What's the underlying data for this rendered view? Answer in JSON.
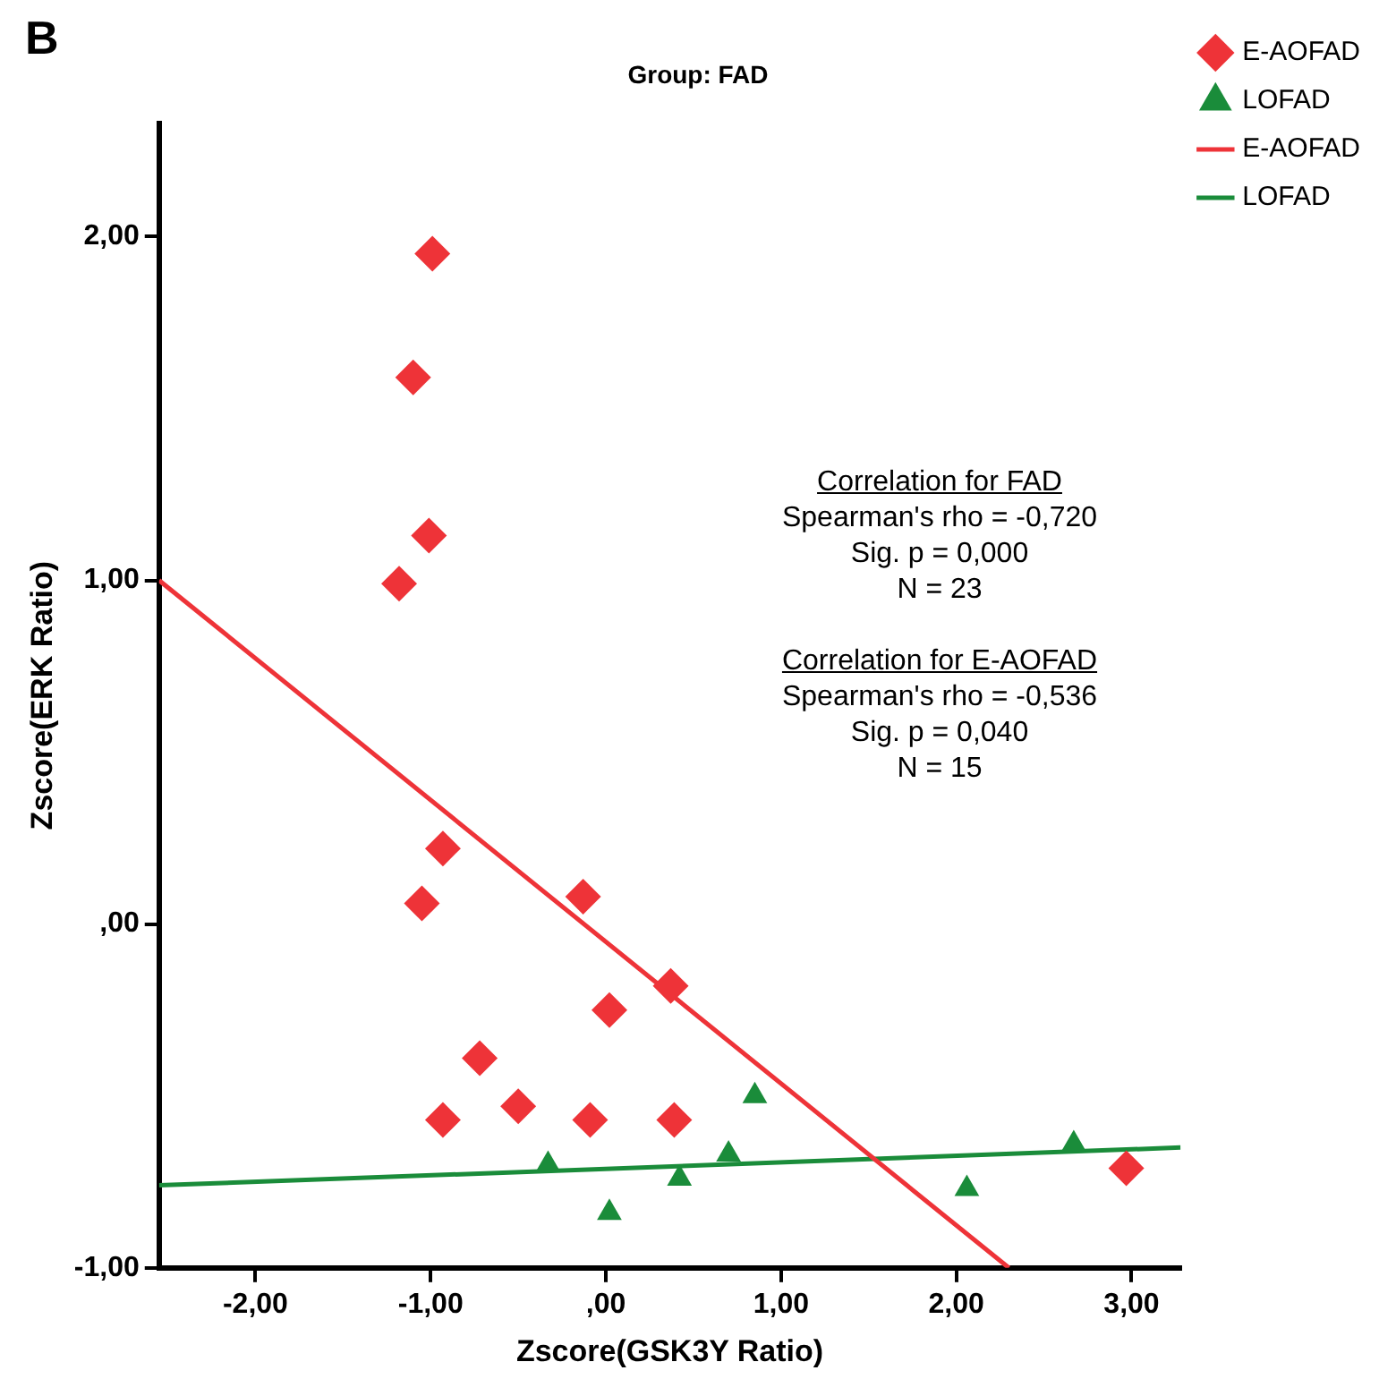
{
  "chart_data": {
    "type": "scatter",
    "title": "Group: FAD",
    "xlabel": "Zscore(GSK3Y Ratio)",
    "ylabel": "Zscore(ERK Ratio)",
    "xlim": [
      -2.55,
      3.28
    ],
    "ylim": [
      -1,
      2.33
    ],
    "xticks": [
      {
        "value": -2,
        "label": "-2,00"
      },
      {
        "value": -1,
        "label": "-1,00"
      },
      {
        "value": 0,
        "label": ",00"
      },
      {
        "value": 1,
        "label": "1,00"
      },
      {
        "value": 2,
        "label": "2,00"
      },
      {
        "value": 3,
        "label": "3,00"
      }
    ],
    "yticks": [
      {
        "value": -1,
        "label": "-1,00"
      },
      {
        "value": 0,
        "label": ",00"
      },
      {
        "value": 1,
        "label": "1,00"
      },
      {
        "value": 2,
        "label": "2,00"
      }
    ],
    "grid": false,
    "legend": "top right",
    "series": [
      {
        "name": "E-AOFAD",
        "marker": "diamond",
        "color": "#ee3338",
        "x": [
          -0.99,
          -1.1,
          -1.01,
          -1.18,
          -0.93,
          -1.05,
          -0.13,
          0.37,
          0.02,
          -0.72,
          -0.93,
          -0.5,
          -0.09,
          0.39,
          2.97
        ],
        "values": [
          1.95,
          1.59,
          1.13,
          0.99,
          0.22,
          0.06,
          0.08,
          -0.18,
          -0.25,
          -0.39,
          -0.57,
          -0.53,
          -0.57,
          -0.57,
          -0.71
        ]
      },
      {
        "name": "LOFAD",
        "marker": "triangle",
        "color": "#1a8c3a",
        "x": [
          -0.33,
          0.02,
          0.42,
          0.85,
          0.7,
          2.06,
          2.67
        ],
        "values": [
          -0.7,
          -0.84,
          -0.74,
          -0.5,
          -0.67,
          -0.77,
          -0.64
        ]
      },
      {
        "name": "E-AOFAD",
        "type": "line",
        "marker": "none",
        "color": "#ee3338",
        "x": [
          -2.55,
          2.3
        ],
        "values": [
          1.0,
          -1.0
        ]
      },
      {
        "name": "LOFAD",
        "type": "line",
        "marker": "none",
        "color": "#1a8c3a",
        "x": [
          -2.55,
          3.28
        ],
        "values": [
          -0.76,
          -0.65
        ]
      }
    ],
    "annotations": [
      "B",
      "Correlation for FAD\nSpearman's rho = -0,720\nSig. p = 0,000\nN = 23",
      "Correlation for E-AOFAD\nSpearman's rho = -0,536\nSig. p = 0,040\nN = 15"
    ]
  }
}
